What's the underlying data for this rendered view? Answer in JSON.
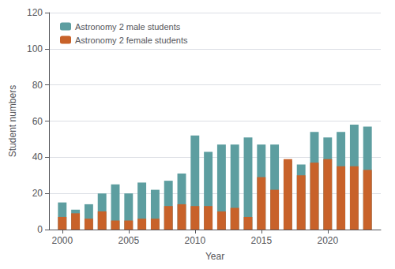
{
  "chart_data": {
    "type": "bar",
    "x": [
      2000,
      2001,
      2002,
      2003,
      2004,
      2005,
      2006,
      2007,
      2008,
      2009,
      2010,
      2011,
      2012,
      2013,
      2014,
      2015,
      2016,
      2017,
      2018,
      2019,
      2020,
      2021,
      2022,
      2023
    ],
    "series": [
      {
        "name": "Astronomy 2 male students",
        "color": "#5d9ea0",
        "values": [
          15,
          11,
          14,
          20,
          25,
          20,
          26,
          22,
          27,
          31,
          52,
          43,
          47,
          47,
          51,
          47,
          47,
          38,
          36,
          54,
          51,
          54,
          58,
          57
        ]
      },
      {
        "name": "Astronomy 2 female students",
        "color": "#c8622a",
        "values": [
          7,
          9,
          6,
          10,
          5,
          5,
          6,
          6,
          13,
          14,
          13,
          13,
          10,
          12,
          7,
          29,
          22,
          39,
          30,
          37,
          39,
          35,
          35,
          33
        ]
      }
    ],
    "xlabel": "Year",
    "ylabel": "Student numbers",
    "xlim": [
      1999,
      2024
    ],
    "xticks": [
      2000,
      2005,
      2010,
      2015,
      2020
    ],
    "ylim": [
      0,
      120
    ],
    "yticks": [
      0,
      20,
      40,
      60,
      80,
      100,
      120
    ],
    "stacked": true,
    "grid": true,
    "legend": "upper left"
  }
}
